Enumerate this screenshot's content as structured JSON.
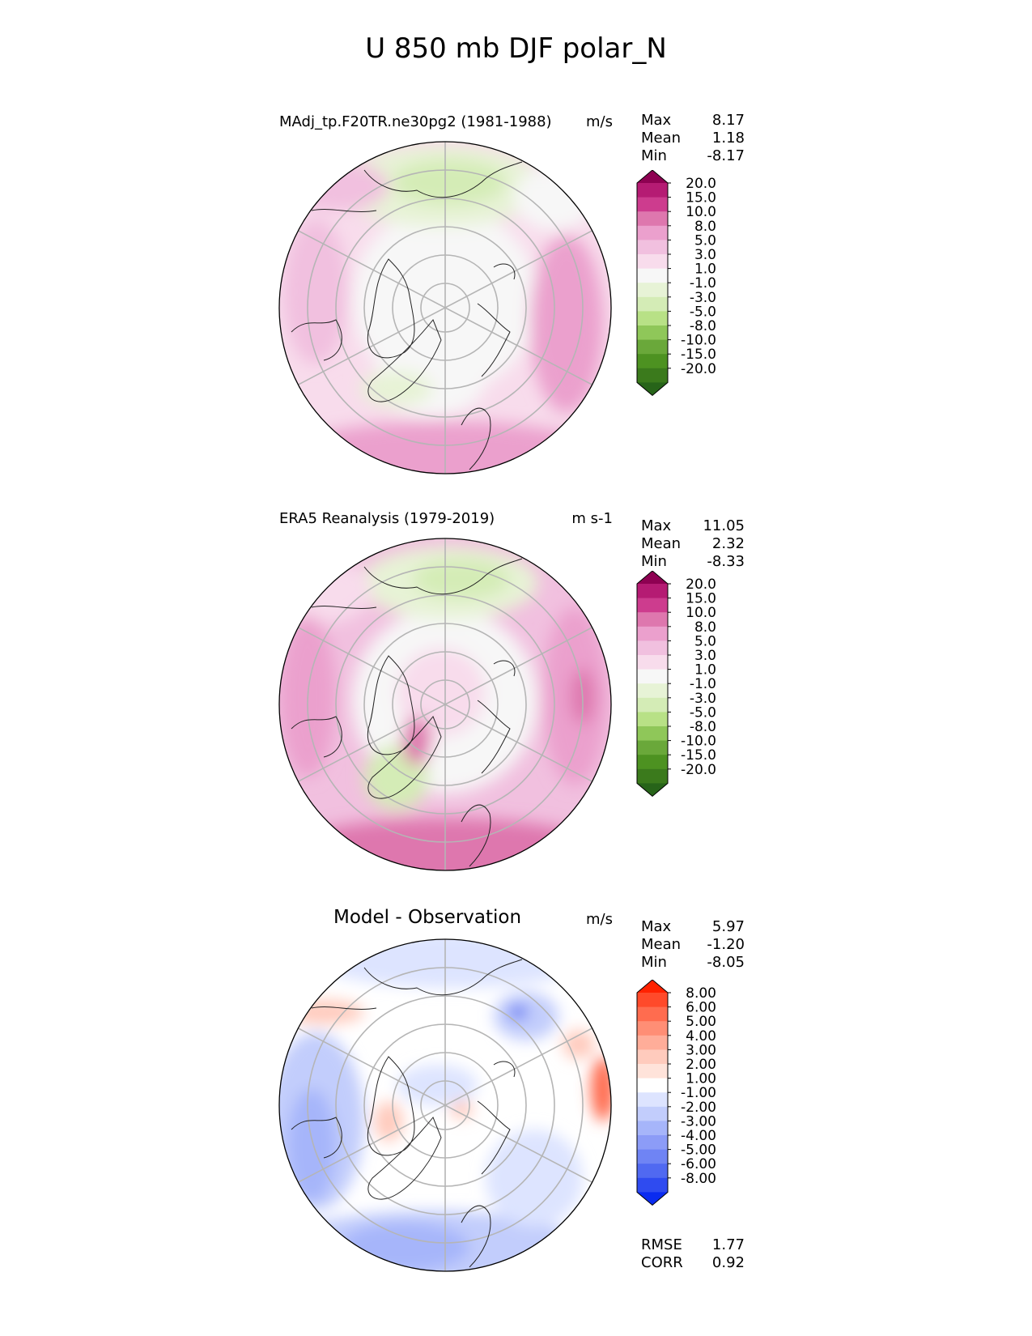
{
  "title": "U 850 mb DJF polar_N",
  "panels": [
    {
      "title": "MAdj_tp.F20TR.ne30pg2 (1981-1988)",
      "units": "m/s",
      "stats": [
        {
          "label": "Max",
          "value": "8.17"
        },
        {
          "label": "Mean",
          "value": "1.18"
        },
        {
          "label": "Min",
          "value": "-8.17"
        }
      ],
      "colorbar": {
        "labels": [
          "20.0",
          "15.0",
          "10.0",
          "8.0",
          "5.0",
          "3.0",
          "1.0",
          "-1.0",
          "-3.0",
          "-5.0",
          "-8.0",
          "-10.0",
          "-15.0",
          "-20.0"
        ],
        "colors": [
          "#8e0152",
          "#b51b73",
          "#cd3c8e",
          "#de77ae",
          "#eba0cd",
          "#f1c0df",
          "#f8dcec",
          "#f7f7f7",
          "#e7f3d6",
          "#d4ecb6",
          "#b8e186",
          "#8fc759",
          "#6aa83a",
          "#4d9221",
          "#3b7a1c",
          "#276419"
        ]
      }
    },
    {
      "title": "ERA5 Reanalysis (1979-2019)",
      "units": "m s-1",
      "stats": [
        {
          "label": "Max",
          "value": "11.05"
        },
        {
          "label": "Mean",
          "value": "2.32"
        },
        {
          "label": "Min",
          "value": "-8.33"
        }
      ],
      "colorbar": {
        "labels": [
          "20.0",
          "15.0",
          "10.0",
          "8.0",
          "5.0",
          "3.0",
          "1.0",
          "-1.0",
          "-3.0",
          "-5.0",
          "-8.0",
          "-10.0",
          "-15.0",
          "-20.0"
        ],
        "colors": [
          "#8e0152",
          "#b51b73",
          "#cd3c8e",
          "#de77ae",
          "#eba0cd",
          "#f1c0df",
          "#f8dcec",
          "#f7f7f7",
          "#e7f3d6",
          "#d4ecb6",
          "#b8e186",
          "#8fc759",
          "#6aa83a",
          "#4d9221",
          "#3b7a1c",
          "#276419"
        ]
      }
    },
    {
      "title": "Model - Observation",
      "units": "m/s",
      "stats": [
        {
          "label": "Max",
          "value": "5.97"
        },
        {
          "label": "Mean",
          "value": "-1.20"
        },
        {
          "label": "Min",
          "value": "-8.05"
        }
      ],
      "colorbar": {
        "labels": [
          "8.00",
          "6.00",
          "5.00",
          "4.00",
          "3.00",
          "2.00",
          "1.00",
          "-1.00",
          "-2.00",
          "-3.00",
          "-4.00",
          "-5.00",
          "-6.00",
          "-8.00"
        ],
        "colors": [
          "#ff2200",
          "#ff4a2a",
          "#ff6c4f",
          "#ff8e75",
          "#ffad99",
          "#ffcbbd",
          "#ffe3da",
          "#ffffff",
          "#dde4ff",
          "#c2cdfc",
          "#a6b5fa",
          "#8c9cf7",
          "#6f84f4",
          "#5069f1",
          "#2f4bf0",
          "#0a2bf0"
        ]
      },
      "extra_stats": [
        {
          "label": "RMSE",
          "value": "1.77"
        },
        {
          "label": "CORR",
          "value": "0.92"
        }
      ]
    }
  ],
  "chart_data": [
    {
      "type": "heatmap",
      "projection": "north polar stereographic",
      "title": "MAdj_tp.F20TR.ne30pg2 (1981-1988)",
      "units": "m/s",
      "max": 8.17,
      "mean": 1.18,
      "min": -8.17,
      "levels": [
        -20,
        -15,
        -10,
        -8,
        -5,
        -3,
        -1,
        1,
        3,
        5,
        8,
        10,
        15,
        20
      ]
    },
    {
      "type": "heatmap",
      "projection": "north polar stereographic",
      "title": "ERA5 Reanalysis (1979-2019)",
      "units": "m s-1",
      "max": 11.05,
      "mean": 2.32,
      "min": -8.33,
      "levels": [
        -20,
        -15,
        -10,
        -8,
        -5,
        -3,
        -1,
        1,
        3,
        5,
        8,
        10,
        15,
        20
      ]
    },
    {
      "type": "heatmap",
      "projection": "north polar stereographic",
      "title": "Model - Observation",
      "units": "m/s",
      "max": 5.97,
      "mean": -1.2,
      "min": -8.05,
      "rmse": 1.77,
      "corr": 0.92,
      "levels": [
        -8,
        -6,
        -5,
        -4,
        -3,
        -2,
        -1,
        1,
        2,
        3,
        4,
        5,
        6,
        8
      ]
    }
  ]
}
